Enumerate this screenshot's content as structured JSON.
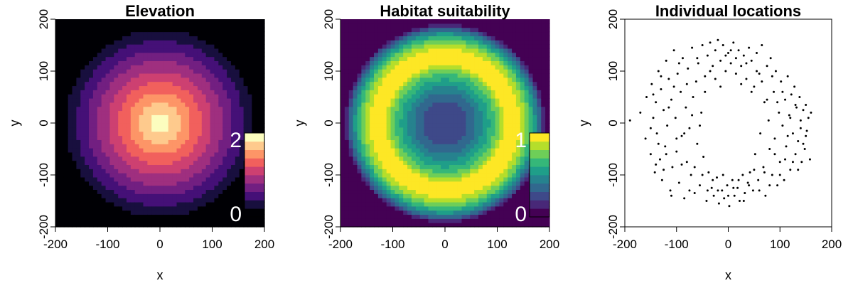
{
  "chart_data": [
    {
      "type": "heatmap",
      "title": "Elevation",
      "xlabel": "x",
      "ylabel": "y",
      "xlim": [
        -200,
        200
      ],
      "ylim": [
        -200,
        200
      ],
      "xticks": [
        -200,
        -100,
        0,
        100,
        200
      ],
      "yticks": [
        -200,
        -100,
        0,
        100,
        200
      ],
      "field": "radial: value = 2.4 at center, declining linearly to 0 at r = 200",
      "center_value": 2.4,
      "zero_radius": 200,
      "palette": [
        "#000004",
        "#180f3e",
        "#451077",
        "#721f81",
        "#9f2f7f",
        "#cd4071",
        "#f1605d",
        "#fd9567",
        "#feca8d",
        "#fcfdbf"
      ],
      "levels": 10,
      "zrange": [
        0,
        2.4
      ],
      "legend": {
        "placement": "bottom-right",
        "max_label": "2",
        "min_label": "0"
      }
    },
    {
      "type": "heatmap",
      "title": "Habitat suitability",
      "xlabel": "",
      "ylabel": "y",
      "xlim": [
        -200,
        200
      ],
      "ylim": [
        -200,
        200
      ],
      "xticks": [
        -200,
        -100,
        0,
        100,
        200
      ],
      "yticks": [
        -200,
        -100,
        0,
        100,
        200
      ],
      "field": "ring: value = 1 at r = 120, falling to 0 near the center and outside r = 200",
      "peak_radius": 120,
      "center_value": 0.2,
      "palette": [
        "#440154",
        "#482878",
        "#3e4989",
        "#31688e",
        "#26828e",
        "#1f9e89",
        "#35b779",
        "#6ece58",
        "#b5de2b",
        "#fde725"
      ],
      "levels": 10,
      "zrange": [
        0,
        1
      ],
      "legend": {
        "placement": "bottom-right",
        "max_label": "1",
        "min_label": "0"
      }
    },
    {
      "type": "scatter",
      "title": "Individual locations",
      "xlabel": "x",
      "ylabel": "y",
      "xlim": [
        -200,
        200
      ],
      "ylim": [
        -200,
        200
      ],
      "xticks": [
        -200,
        -100,
        0,
        100,
        200
      ],
      "yticks": [
        -200,
        -100,
        0,
        100,
        200
      ],
      "point_color": "#000000",
      "points": [
        [
          -190,
          5
        ],
        [
          -170,
          20
        ],
        [
          -160,
          -30
        ],
        [
          -158,
          50
        ],
        [
          -150,
          -60
        ],
        [
          -148,
          75
        ],
        [
          -145,
          10
        ],
        [
          -142,
          -95
        ],
        [
          -140,
          40
        ],
        [
          -138,
          -20
        ],
        [
          -135,
          100
        ],
        [
          -132,
          -70
        ],
        [
          -130,
          65
        ],
        [
          -128,
          -110
        ],
        [
          -125,
          25
        ],
        [
          -122,
          -45
        ],
        [
          -120,
          120
        ],
        [
          -118,
          -5
        ],
        [
          -115,
          85
        ],
        [
          -112,
          -130
        ],
        [
          -110,
          45
        ],
        [
          -108,
          -85
        ],
        [
          -105,
          140
        ],
        [
          -102,
          10
        ],
        [
          -100,
          -55
        ],
        [
          -98,
          95
        ],
        [
          -95,
          -115
        ],
        [
          -92,
          60
        ],
        [
          -90,
          -25
        ],
        [
          -88,
          125
        ],
        [
          -85,
          -145
        ],
        [
          -82,
          30
        ],
        [
          -80,
          -75
        ],
        [
          -78,
          105
        ],
        [
          -75,
          -10
        ],
        [
          -72,
          -100
        ],
        [
          -70,
          145
        ],
        [
          -68,
          50
        ],
        [
          -65,
          -135
        ],
        [
          -62,
          80
        ],
        [
          -60,
          -40
        ],
        [
          -58,
          115
        ],
        [
          -55,
          -120
        ],
        [
          -52,
          20
        ],
        [
          -50,
          150
        ],
        [
          -48,
          -65
        ],
        [
          -45,
          90
        ],
        [
          -42,
          -150
        ],
        [
          -40,
          130
        ],
        [
          -38,
          -95
        ],
        [
          -35,
          155
        ],
        [
          -32,
          -125
        ],
        [
          -30,
          110
        ],
        [
          -28,
          -140
        ],
        [
          -25,
          140
        ],
        [
          -22,
          -105
        ],
        [
          -20,
          160
        ],
        [
          -18,
          -155
        ],
        [
          -15,
          120
        ],
        [
          -12,
          -130
        ],
        [
          -10,
          150
        ],
        [
          -8,
          -145
        ],
        [
          -5,
          100
        ],
        [
          -2,
          -120
        ],
        [
          0,
          135
        ],
        [
          2,
          -160
        ],
        [
          5,
          115
        ],
        [
          8,
          -110
        ],
        [
          10,
          155
        ],
        [
          12,
          -140
        ],
        [
          15,
          95
        ],
        [
          18,
          -125
        ],
        [
          20,
          140
        ],
        [
          22,
          -150
        ],
        [
          25,
          110
        ],
        [
          28,
          -100
        ],
        [
          30,
          130
        ],
        [
          32,
          -135
        ],
        [
          35,
          85
        ],
        [
          38,
          -115
        ],
        [
          40,
          145
        ],
        [
          42,
          -95
        ],
        [
          45,
          120
        ],
        [
          48,
          -130
        ],
        [
          50,
          70
        ],
        [
          52,
          -60
        ],
        [
          55,
          135
        ],
        [
          58,
          -110
        ],
        [
          60,
          95
        ],
        [
          62,
          -20
        ],
        [
          65,
          150
        ],
        [
          68,
          -85
        ],
        [
          70,
          40
        ],
        [
          72,
          -140
        ],
        [
          75,
          110
        ],
        [
          78,
          5
        ],
        [
          80,
          -50
        ],
        [
          82,
          125
        ],
        [
          85,
          -100
        ],
        [
          88,
          60
        ],
        [
          90,
          -30
        ],
        [
          92,
          100
        ],
        [
          95,
          -120
        ],
        [
          98,
          20
        ],
        [
          100,
          -75
        ],
        [
          102,
          80
        ],
        [
          105,
          -5
        ],
        [
          108,
          -110
        ],
        [
          110,
          45
        ],
        [
          112,
          -45
        ],
        [
          115,
          90
        ],
        [
          118,
          15
        ],
        [
          120,
          -90
        ],
        [
          122,
          55
        ],
        [
          125,
          -20
        ],
        [
          128,
          70
        ],
        [
          130,
          -60
        ],
        [
          132,
          30
        ],
        [
          135,
          -35
        ],
        [
          138,
          50
        ],
        [
          140,
          -10
        ],
        [
          142,
          -75
        ],
        [
          145,
          25
        ],
        [
          148,
          -50
        ],
        [
          150,
          35
        ],
        [
          152,
          -15
        ],
        [
          155,
          10
        ],
        [
          158,
          -70
        ],
        [
          160,
          20
        ],
        [
          -150,
          -10
        ],
        [
          -145,
          55
        ],
        [
          -140,
          -80
        ],
        [
          -135,
          -40
        ],
        [
          -130,
          90
        ],
        [
          -125,
          -90
        ],
        [
          -120,
          -60
        ],
        [
          -115,
          30
        ],
        [
          -110,
          -140
        ],
        [
          -105,
          70
        ],
        [
          -100,
          -30
        ],
        [
          -95,
          115
        ],
        [
          -90,
          -80
        ],
        [
          -85,
          -20
        ],
        [
          -80,
          75
        ],
        [
          -75,
          -130
        ],
        [
          -70,
          15
        ],
        [
          -65,
          -85
        ],
        [
          -60,
          125
        ],
        [
          -55,
          -5
        ],
        [
          -50,
          -100
        ],
        [
          -45,
          60
        ],
        [
          -40,
          -130
        ],
        [
          -35,
          100
        ],
        [
          -30,
          -110
        ],
        [
          -25,
          85
        ],
        [
          -20,
          -130
        ],
        [
          -15,
          70
        ],
        [
          -10,
          -100
        ],
        [
          -5,
          130
        ],
        [
          0,
          -140
        ],
        [
          5,
          140
        ],
        [
          10,
          -125
        ],
        [
          15,
          125
        ],
        [
          20,
          -110
        ],
        [
          25,
          75
        ],
        [
          30,
          -150
        ],
        [
          35,
          115
        ],
        [
          40,
          -120
        ],
        [
          45,
          60
        ],
        [
          50,
          -90
        ],
        [
          55,
          100
        ],
        [
          60,
          -130
        ],
        [
          65,
          80
        ],
        [
          70,
          -95
        ],
        [
          75,
          45
        ],
        [
          80,
          -120
        ],
        [
          85,
          90
        ],
        [
          90,
          -60
        ],
        [
          95,
          40
        ],
        [
          100,
          -100
        ],
        [
          105,
          60
        ],
        [
          110,
          -70
        ],
        [
          115,
          -25
        ],
        [
          120,
          10
        ],
        [
          125,
          -75
        ],
        [
          130,
          35
        ],
        [
          135,
          -90
        ],
        [
          140,
          5
        ],
        [
          145,
          -40
        ],
        [
          150,
          -25
        ]
      ]
    }
  ]
}
